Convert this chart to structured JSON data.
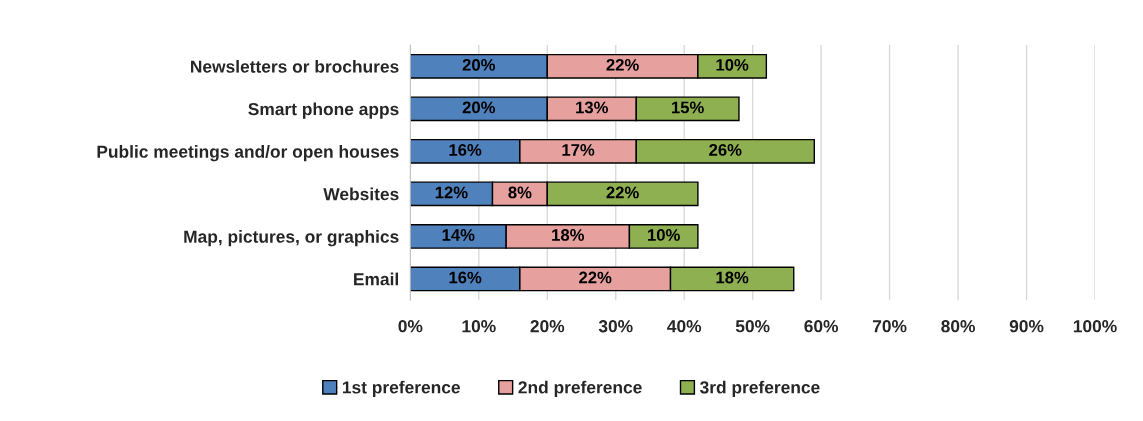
{
  "chart_data": {
    "type": "bar",
    "orientation": "horizontal",
    "stacked": true,
    "categories": [
      "Newsletters or brochures",
      "Smart phone apps",
      "Public meetings and/or open houses",
      "Websites",
      "Map, pictures, or graphics",
      "Email"
    ],
    "series": [
      {
        "name": "1st preference",
        "color": "#4f81bd",
        "values": [
          20,
          20,
          16,
          12,
          14,
          16
        ],
        "value_labels": [
          "20%",
          "20%",
          "16%",
          "12%",
          "14%",
          "16%"
        ]
      },
      {
        "name": "2nd preference",
        "color": "#e6a09e",
        "values": [
          22,
          13,
          17,
          8,
          18,
          22
        ],
        "value_labels": [
          "22%",
          "13%",
          "17%",
          "8%",
          "18%",
          "22%"
        ]
      },
      {
        "name": "3rd preference",
        "color": "#8fb050",
        "values": [
          10,
          15,
          26,
          22,
          10,
          18
        ],
        "value_labels": [
          "10%",
          "15%",
          "26%",
          "22%",
          "10%",
          "18%"
        ]
      }
    ],
    "xlim": [
      0,
      100
    ],
    "xticks": [
      {
        "value": 0,
        "label": "0%"
      },
      {
        "value": 10,
        "label": "10%"
      },
      {
        "value": 20,
        "label": "20%"
      },
      {
        "value": 30,
        "label": "30%"
      },
      {
        "value": 40,
        "label": "40%"
      },
      {
        "value": 50,
        "label": "50%"
      },
      {
        "value": 60,
        "label": "60%"
      },
      {
        "value": 70,
        "label": "70%"
      },
      {
        "value": 80,
        "label": "80%"
      },
      {
        "value": 90,
        "label": "90%"
      },
      {
        "value": 100,
        "label": "100%"
      }
    ],
    "grid": "x",
    "legend": "bottom"
  }
}
